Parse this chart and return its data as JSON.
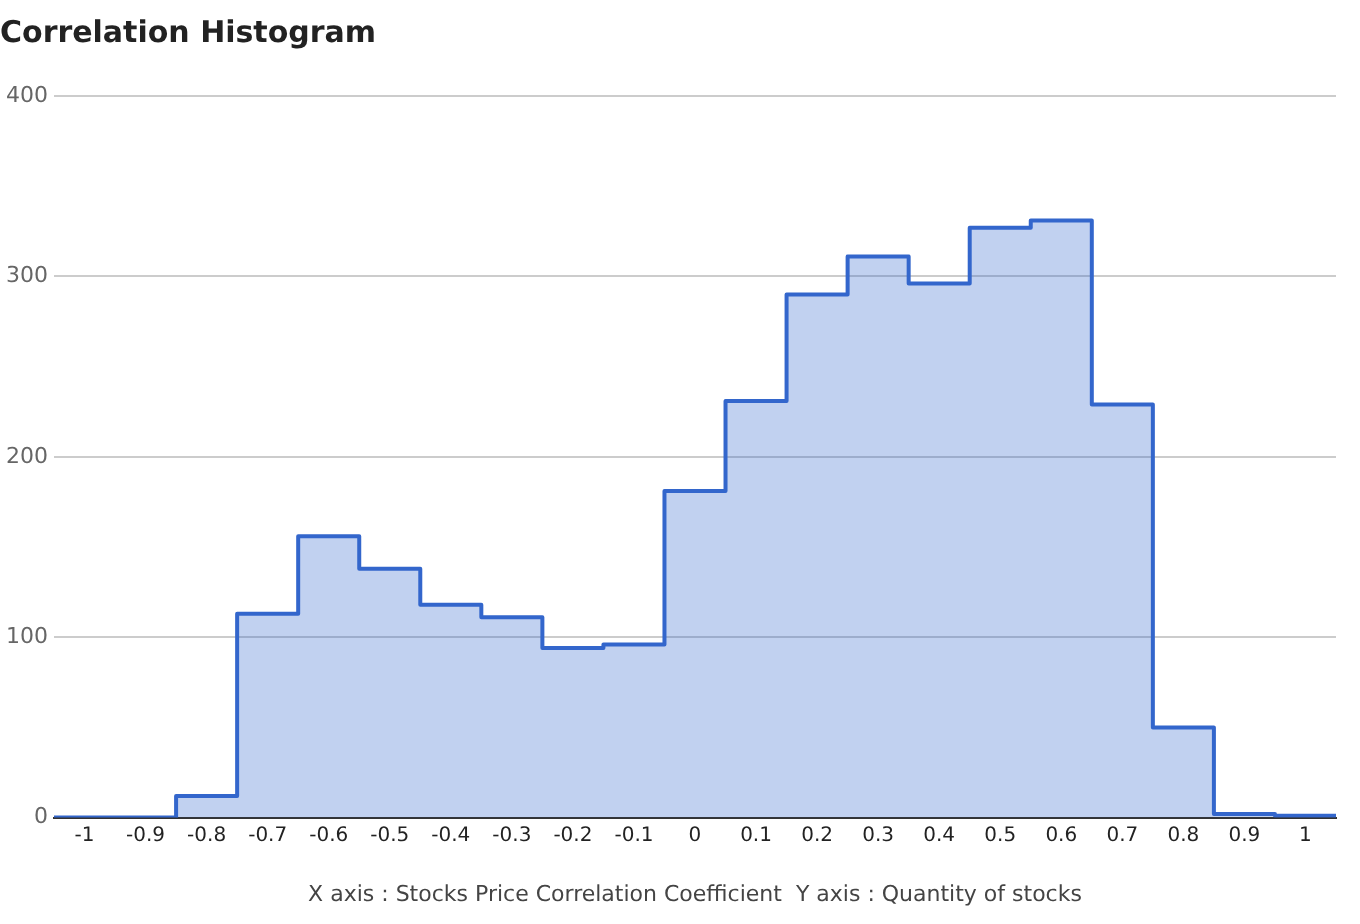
{
  "chart_data": {
    "type": "histogram",
    "title": "Correlation Histogram",
    "xlabel": "X axis : Stocks Price Correlation Coefficient  Y axis : Quantity of stocks",
    "bins": [
      -1.05,
      -0.95,
      -0.85,
      -0.75,
      -0.65,
      -0.55,
      -0.45,
      -0.35,
      -0.25,
      -0.15,
      -0.05,
      0.05,
      0.15,
      0.25,
      0.35,
      0.45,
      0.55,
      0.65,
      0.75,
      0.85,
      0.95,
      1.05
    ],
    "values": [
      0,
      0,
      12,
      113,
      156,
      138,
      118,
      111,
      94,
      96,
      181,
      231,
      290,
      311,
      296,
      327,
      331,
      229,
      50,
      2,
      1
    ],
    "color": "#3366cc",
    "xlim": [
      -1.05,
      1.05
    ],
    "xticks": [
      -1,
      -0.9,
      -0.8,
      -0.7,
      -0.6,
      -0.5,
      -0.4,
      -0.3,
      -0.2,
      -0.1,
      0,
      0.1,
      0.2,
      0.3,
      0.4,
      0.5,
      0.6,
      0.7,
      0.8,
      0.9,
      1
    ],
    "ylim": [
      0,
      400
    ],
    "yticks": [
      0,
      100,
      200,
      300,
      400
    ],
    "grid": "y",
    "legend": false
  }
}
